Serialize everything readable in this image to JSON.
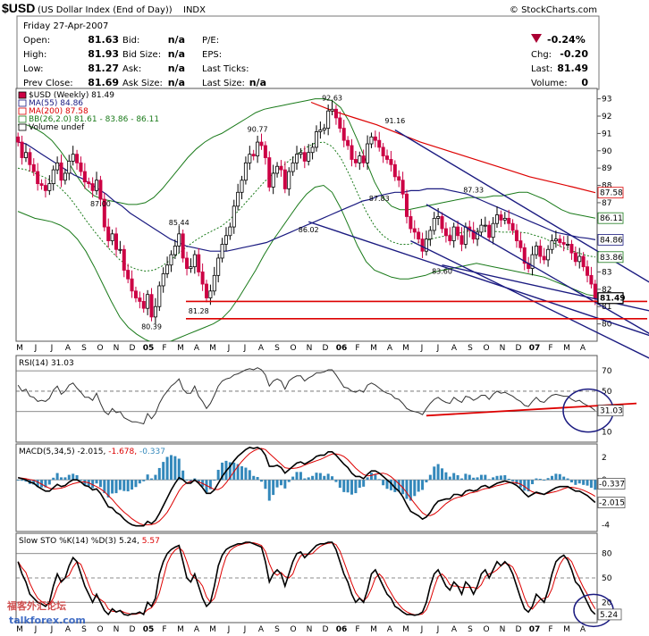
{
  "header": {
    "symbol": "$USD",
    "name": "(US Dollar Index (End of Day))",
    "exchange": "INDX",
    "source": "© StockCharts.com",
    "date_line": "Friday   27-Apr-2007"
  },
  "quote": {
    "rows": [
      {
        "l1": "Open:",
        "v1": "81.63",
        "l2": "Bid:",
        "v2": "n/a",
        "l3": "P/E:",
        "v3": ""
      },
      {
        "l1": "High:",
        "v1": "81.93",
        "l2": "Bid Size:",
        "v2": "n/a",
        "l3": "EPS:",
        "v3": ""
      },
      {
        "l1": "Low:",
        "v1": "81.27",
        "l2": "Ask:",
        "v2": "n/a",
        "l3": "Last Ticks:",
        "v3": ""
      },
      {
        "l1": "Prev Close:",
        "v1": "81.69",
        "l2": "Ask Size:",
        "v2": "n/a",
        "l3": "Last Size:",
        "v3": "n/a"
      }
    ],
    "change_pct": "-0.24%",
    "right_rows": [
      {
        "label": "Chg:",
        "value": "-0.20"
      },
      {
        "label": "Last:",
        "value": "81.49"
      },
      {
        "label": "Volume:",
        "value": "0"
      }
    ],
    "down_color": "#aa0033"
  },
  "watermark": {
    "cn": "福客外汇论坛",
    "site": "talkforex.com"
  },
  "colors": {
    "ma55": "#1a1a80",
    "ma200": "#dd0000",
    "bb": "#1a7a1a",
    "up": "#000000",
    "down": "#cc0044",
    "rsi_line": "#333333",
    "hline": "#dd0000"
  },
  "chart_data": [
    {
      "type": "candlestick",
      "title": "$USD (Weekly) 81.49",
      "legend": [
        "$USD (Weekly) 81.49",
        "MA(55) 84.86",
        "MA(200) 87.58",
        "BB(26,2.0) 81.61 - 83.86 - 86.11",
        "Volume undef"
      ],
      "ylim": [
        79,
        93.6
      ],
      "y_ticks": [
        80,
        81,
        82,
        83,
        84,
        85,
        86,
        87,
        88,
        89,
        90,
        91,
        92,
        93
      ],
      "x_labels": [
        "M",
        "J",
        "J",
        "A",
        "S",
        "O",
        "N",
        "D",
        "05",
        "F",
        "M",
        "A",
        "M",
        "J",
        "J",
        "A",
        "S",
        "O",
        "N",
        "D",
        "06",
        "F",
        "M",
        "A",
        "M",
        "J",
        "J",
        "A",
        "S",
        "O",
        "N",
        "D",
        "07",
        "F",
        "M",
        "A"
      ],
      "x_bold": [
        "05",
        "06",
        "07"
      ],
      "closes": [
        90.5,
        89.6,
        89.9,
        89.2,
        88.8,
        88.1,
        88.0,
        87.7,
        88.1,
        88.9,
        89.3,
        88.3,
        88.7,
        89.4,
        89.8,
        89.3,
        88.8,
        88.2,
        88.1,
        87.7,
        88.3,
        87.2,
        85.6,
        84.8,
        85.2,
        84.3,
        84.3,
        83.1,
        82.6,
        81.9,
        81.5,
        81.3,
        80.9,
        81.7,
        80.4,
        81.0,
        82.2,
        82.9,
        83.4,
        84.0,
        84.5,
        85.2,
        83.8,
        83.2,
        83.3,
        84.0,
        83.0,
        82.3,
        81.5,
        81.9,
        82.8,
        83.8,
        84.6,
        85.1,
        85.6,
        86.8,
        87.6,
        88.3,
        89.3,
        89.8,
        89.7,
        90.5,
        90.3,
        89.6,
        87.9,
        88.7,
        89.1,
        88.9,
        87.8,
        88.8,
        89.3,
        89.8,
        89.9,
        89.4,
        89.9,
        90.2,
        91.1,
        91.2,
        91.3,
        92.3,
        92.4,
        91.9,
        91.3,
        90.6,
        90.3,
        89.5,
        89.3,
        89.7,
        89.3,
        90.4,
        90.8,
        90.6,
        90.2,
        89.7,
        89.5,
        89.2,
        88.5,
        88.3,
        87.5,
        86.2,
        85.5,
        85.3,
        84.9,
        84.2,
        84.9,
        85.4,
        86.1,
        86.2,
        85.5,
        85.1,
        84.8,
        85.6,
        85.1,
        84.6,
        85.6,
        85.4,
        84.9,
        85.3,
        85.7,
        85.7,
        85.0,
        85.8,
        86.3,
        86.0,
        86.1,
        85.8,
        85.4,
        84.8,
        84.4,
        83.5,
        83.2,
        84.0,
        84.5,
        83.9,
        83.7,
        84.3,
        84.8,
        84.9,
        84.7,
        84.6,
        84.6,
        84.1,
        83.6,
        83.9,
        83.3,
        82.8,
        82.3,
        81.49
      ],
      "ma55": [
        90.5,
        90.4,
        90.1,
        89.8,
        89.5,
        89.2,
        88.9,
        88.6,
        88.4,
        88.1,
        87.8,
        87.5,
        87.1,
        86.8,
        86.4,
        86.1,
        85.8,
        85.5,
        85.2,
        84.9,
        84.7,
        84.5,
        84.4,
        84.3,
        84.2,
        84.2,
        84.2,
        84.3,
        84.4,
        84.5,
        84.6,
        84.7,
        84.9,
        85.1,
        85.3,
        85.5,
        85.7,
        85.9,
        86.1,
        86.3,
        86.5,
        86.7,
        86.9,
        87.1,
        87.2,
        87.4,
        87.5,
        87.6,
        87.6,
        87.7,
        87.7,
        87.8,
        87.8,
        87.8,
        87.7,
        87.6,
        87.5,
        87.3,
        87.1,
        86.9,
        86.7,
        86.5,
        86.3,
        86.1,
        85.9,
        85.7,
        85.5,
        85.3,
        85.2,
        85.1,
        85.0,
        84.95,
        84.86
      ],
      "ma200": [
        92.8,
        92.3,
        91.9,
        91.5,
        91.0,
        90.5,
        90.1,
        89.7,
        89.3,
        88.9,
        88.5,
        88.2,
        87.9,
        87.58
      ],
      "bb_upper": [
        91.5,
        91.5,
        91.3,
        91.0,
        90.6,
        90.0,
        89.3,
        88.5,
        87.8,
        87.4,
        87.2,
        87.1,
        87.0,
        86.9,
        86.9,
        87.0,
        87.3,
        87.8,
        88.4,
        89.0,
        89.6,
        90.1,
        90.5,
        90.8,
        91.0,
        91.3,
        91.6,
        91.9,
        92.2,
        92.4,
        92.5,
        92.6,
        92.7,
        92.8,
        92.9,
        93.0,
        93.0,
        92.9,
        92.5,
        91.7,
        90.6,
        89.4,
        88.2,
        87.3,
        86.8,
        86.6,
        86.6,
        86.7,
        86.8,
        86.9,
        87.0,
        87.1,
        87.2,
        87.3,
        87.3,
        87.3,
        87.4,
        87.4,
        87.5,
        87.6,
        87.6,
        87.4,
        87.2,
        86.9,
        86.6,
        86.4,
        86.3,
        86.2,
        86.11
      ],
      "bb_lower": [
        86.5,
        86.3,
        86.1,
        86.0,
        85.9,
        85.7,
        85.4,
        84.9,
        84.2,
        83.3,
        82.3,
        81.3,
        80.4,
        79.8,
        79.4,
        79.1,
        78.9,
        78.9,
        79.0,
        79.2,
        79.4,
        79.6,
        79.8,
        80.0,
        80.3,
        80.8,
        81.5,
        82.3,
        83.1,
        84.0,
        84.8,
        85.5,
        86.2,
        86.9,
        87.5,
        87.9,
        88.0,
        87.6,
        86.7,
        85.6,
        84.5,
        83.6,
        83.1,
        82.9,
        82.7,
        82.6,
        82.6,
        82.7,
        82.8,
        83.0,
        83.1,
        83.2,
        83.3,
        83.4,
        83.5,
        83.4,
        83.3,
        83.2,
        83.1,
        83.0,
        82.9,
        82.8,
        82.7,
        82.5,
        82.3,
        82.1,
        81.9,
        81.7,
        81.61
      ],
      "annotations": [
        {
          "label": "87.00",
          "i": 21,
          "y": 86.8
        },
        {
          "label": "85.44",
          "i": 41,
          "y": 85.7
        },
        {
          "label": "81.28",
          "i": 46,
          "y": 80.6
        },
        {
          "label": "80.39",
          "i": 34,
          "y": 79.7
        },
        {
          "label": "90.77",
          "i": 61,
          "y": 91.1
        },
        {
          "label": "86.02",
          "i": 74,
          "y": 85.3
        },
        {
          "label": "92.63",
          "i": 80,
          "y": 92.9
        },
        {
          "label": "87.83",
          "i": 92,
          "y": 87.1
        },
        {
          "label": "91.16",
          "i": 96,
          "y": 91.6
        },
        {
          "label": "83.60",
          "i": 108,
          "y": 82.9
        },
        {
          "label": "87.33",
          "i": 116,
          "y": 87.6
        }
      ],
      "right_labels": [
        {
          "v": "87.58",
          "y": 87.58,
          "color": "#dd0000"
        },
        {
          "v": "86.11",
          "y": 86.11,
          "color": "#1a7a1a"
        },
        {
          "v": "84.86",
          "y": 84.86,
          "color": "#1a1a80"
        },
        {
          "v": "83.86",
          "y": 83.86,
          "color": "#1a7a1a"
        },
        {
          "v": "81.49",
          "y": 81.49,
          "color": "#000000",
          "boxed": true
        }
      ],
      "hlines": [
        81.3,
        80.3
      ],
      "trendlines": [
        {
          "a": [
            96,
            91.2
          ],
          "b": [
            152,
            83.6
          ],
          "color": "#1a1a80"
        },
        {
          "a": [
            104,
            86.9
          ],
          "b": [
            152,
            80.6
          ],
          "color": "#1a1a80"
        },
        {
          "a": [
            74,
            85.9
          ],
          "b": [
            152,
            80.0
          ],
          "color": "#1a1a80"
        },
        {
          "a": [
            100,
            84.8
          ],
          "b": [
            152,
            79.0
          ],
          "color": "#1a1a80"
        },
        {
          "a": [
            108,
            83.4
          ],
          "b": [
            152,
            81.2
          ],
          "color": "#1a1a80"
        }
      ]
    },
    {
      "type": "line",
      "title": "RSI(14) 31.03",
      "ylim": [
        0,
        85
      ],
      "y_ticks": [
        10,
        30,
        50,
        70
      ],
      "reference_lines": [
        30,
        50,
        70
      ],
      "last": "31.03",
      "values": [
        56,
        50,
        52,
        45,
        44,
        40,
        41,
        40,
        43,
        51,
        55,
        47,
        50,
        56,
        58,
        53,
        49,
        44,
        44,
        41,
        48,
        38,
        30,
        27,
        33,
        29,
        30,
        24,
        22,
        20,
        20,
        19,
        18,
        28,
        23,
        28,
        38,
        45,
        50,
        55,
        58,
        62,
        52,
        48,
        48,
        55,
        45,
        40,
        33,
        38,
        46,
        55,
        60,
        62,
        63,
        66,
        67,
        69,
        71,
        72,
        71,
        73,
        71,
        66,
        55,
        60,
        62,
        60,
        52,
        60,
        63,
        65,
        65,
        60,
        63,
        65,
        68,
        68,
        69,
        71,
        71,
        66,
        60,
        54,
        53,
        50,
        49,
        51,
        49,
        56,
        58,
        56,
        53,
        50,
        48,
        47,
        43,
        42,
        38,
        33,
        31,
        30,
        29,
        27,
        33,
        38,
        42,
        44,
        41,
        39,
        38,
        44,
        41,
        39,
        45,
        44,
        41,
        43,
        46,
        46,
        42,
        47,
        50,
        48,
        49,
        47,
        45,
        42,
        40,
        36,
        35,
        40,
        44,
        40,
        39,
        43,
        46,
        47,
        46,
        45,
        45,
        42,
        40,
        41,
        38,
        36,
        34,
        31.03
      ],
      "support_line": {
        "a": [
          104,
          26
        ],
        "b": [
          152,
          37
        ]
      }
    },
    {
      "type": "line+histogram",
      "title": "MACD(5,34,5) -2.015, -1.678, -0.337",
      "ylim": [
        -4.6,
        3.2
      ],
      "y_ticks": [
        -4,
        -2,
        0,
        2
      ],
      "macd_last": "-2.015",
      "signal_last": "-1.678",
      "hist_last": "-0.337",
      "macd": [
        0.2,
        0.1,
        0.0,
        -0.2,
        -0.3,
        -0.6,
        -0.8,
        -1.0,
        -1.0,
        -0.7,
        -0.4,
        -0.6,
        -0.5,
        -0.2,
        0.0,
        0.0,
        -0.2,
        -0.5,
        -0.6,
        -0.9,
        -0.8,
        -1.2,
        -1.8,
        -2.4,
        -2.5,
        -2.9,
        -3.1,
        -3.5,
        -3.8,
        -4.0,
        -4.1,
        -4.1,
        -4.1,
        -3.7,
        -3.9,
        -3.6,
        -3.0,
        -2.3,
        -1.6,
        -0.9,
        -0.3,
        0.2,
        0.0,
        -0.3,
        -0.3,
        0.0,
        -0.3,
        -0.7,
        -1.2,
        -1.2,
        -0.9,
        -0.3,
        0.3,
        0.8,
        1.2,
        1.7,
        2.1,
        2.4,
        2.7,
        2.9,
        2.8,
        2.9,
        2.7,
        2.2,
        1.2,
        1.2,
        1.3,
        1.1,
        0.6,
        0.9,
        1.2,
        1.5,
        1.6,
        1.4,
        1.6,
        1.8,
        2.1,
        2.2,
        2.2,
        2.5,
        2.5,
        2.2,
        1.8,
        1.4,
        1.1,
        0.6,
        0.3,
        0.3,
        0.1,
        0.5,
        0.8,
        0.8,
        0.6,
        0.3,
        0.0,
        -0.3,
        -0.7,
        -1.0,
        -1.5,
        -2.2,
        -2.8,
        -3.0,
        -3.2,
        -3.5,
        -3.3,
        -2.9,
        -2.3,
        -1.9,
        -1.8,
        -1.7,
        -1.7,
        -1.3,
        -1.3,
        -1.4,
        -1.0,
        -0.9,
        -1.0,
        -0.9,
        -0.6,
        -0.5,
        -0.7,
        -0.5,
        -0.3,
        -0.2,
        -0.1,
        -0.2,
        -0.3,
        -0.5,
        -0.8,
        -1.2,
        -1.5,
        -1.3,
        -1.1,
        -1.2,
        -1.3,
        -1.1,
        -0.9,
        -0.7,
        -0.6,
        -0.6,
        -0.6,
        -0.8,
        -1.0,
        -1.0,
        -1.2,
        -1.4,
        -1.7,
        -2.015
      ]
    },
    {
      "type": "line",
      "title": "Slow STO %K(14) %D(3) 5.24, 5.57",
      "ylim": [
        -5,
        105
      ],
      "y_ticks": [
        20,
        50,
        80
      ],
      "reference_lines": [
        20,
        50,
        80
      ],
      "k_last": "5.24",
      "d_last": "5.57",
      "k": [
        70,
        55,
        45,
        30,
        25,
        20,
        18,
        15,
        20,
        40,
        55,
        45,
        50,
        65,
        75,
        70,
        55,
        40,
        30,
        20,
        30,
        20,
        10,
        5,
        12,
        8,
        10,
        5,
        4,
        6,
        6,
        8,
        5,
        20,
        15,
        25,
        55,
        70,
        80,
        85,
        88,
        90,
        70,
        50,
        45,
        55,
        40,
        25,
        15,
        20,
        40,
        65,
        78,
        85,
        88,
        90,
        92,
        92,
        94,
        94,
        92,
        90,
        88,
        70,
        45,
        55,
        60,
        55,
        40,
        55,
        70,
        80,
        82,
        75,
        80,
        85,
        90,
        92,
        92,
        94,
        94,
        85,
        70,
        55,
        45,
        30,
        20,
        25,
        20,
        35,
        55,
        60,
        50,
        40,
        30,
        25,
        15,
        12,
        8,
        5,
        5,
        4,
        5,
        8,
        20,
        40,
        55,
        60,
        50,
        40,
        35,
        45,
        40,
        30,
        45,
        40,
        30,
        40,
        55,
        60,
        50,
        60,
        70,
        65,
        70,
        65,
        55,
        40,
        25,
        12,
        8,
        15,
        30,
        25,
        20,
        35,
        55,
        70,
        75,
        78,
        72,
        60,
        45,
        40,
        30,
        20,
        10,
        5.24
      ]
    }
  ]
}
